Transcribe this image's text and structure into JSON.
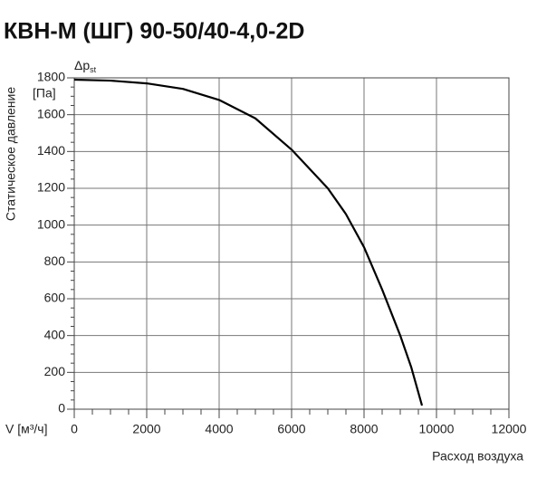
{
  "chart_data": {
    "type": "line",
    "title": "КВН-М (ШГ) 90-50/40-4,0-2D",
    "y_label": "Статическое давление",
    "y_unit": "[Па]",
    "y_symbol": "Δp",
    "y_symbol_sub": "st",
    "x_unit_label": "V [м³/ч]",
    "x_label": "Расход воздуха",
    "x": [
      0,
      1000,
      2000,
      3000,
      4000,
      5000,
      6000,
      7000,
      7500,
      8000,
      8500,
      9000,
      9300,
      9600
    ],
    "series": [
      {
        "name": "Δp st",
        "color": "#000000",
        "values": [
          1790,
          1785,
          1770,
          1740,
          1680,
          1580,
          1410,
          1200,
          1060,
          880,
          650,
          400,
          230,
          20
        ]
      }
    ],
    "xlim": [
      0,
      12000
    ],
    "xticks": [
      0,
      2000,
      4000,
      6000,
      8000,
      10000,
      12000
    ],
    "ylim": [
      0,
      1800
    ],
    "yticks": [
      0,
      200,
      400,
      600,
      800,
      1000,
      1200,
      1400,
      1600,
      1800
    ],
    "grid": true
  }
}
